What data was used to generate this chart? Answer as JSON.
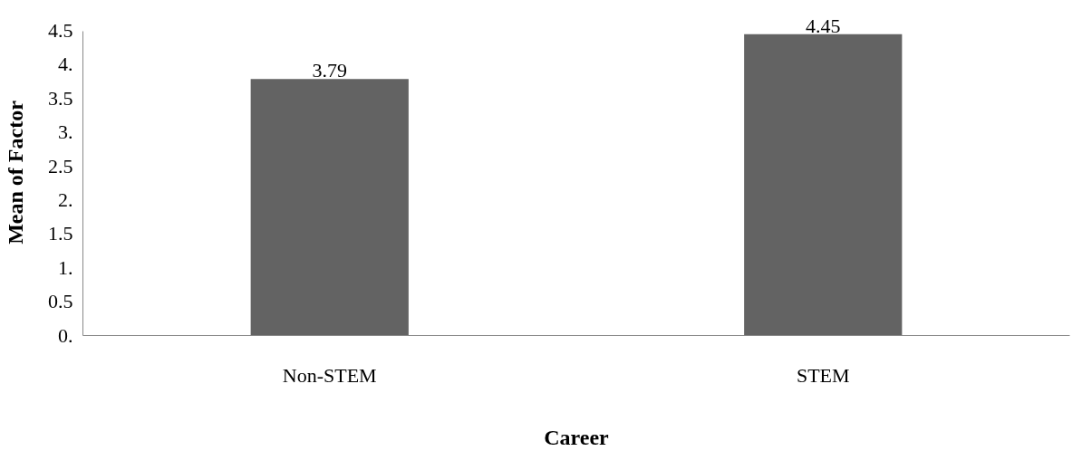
{
  "chart_data": {
    "type": "bar",
    "xlabel": "Career",
    "ylabel": "Mean of Factor",
    "categories": [
      "Non-STEM",
      "STEM"
    ],
    "values": [
      3.79,
      4.45
    ],
    "color": "#636363",
    "ylim": [
      0,
      4.5
    ],
    "yticks": [
      {
        "value": 0,
        "label": "0."
      },
      0.5,
      {
        "value": 1,
        "label": "1."
      },
      1.5,
      {
        "value": 2,
        "label": "2."
      },
      2.5,
      {
        "value": 3,
        "label": "3."
      },
      3.5,
      {
        "value": 4,
        "label": "4."
      },
      4.5
    ],
    "data_labels": true,
    "grid": false
  }
}
